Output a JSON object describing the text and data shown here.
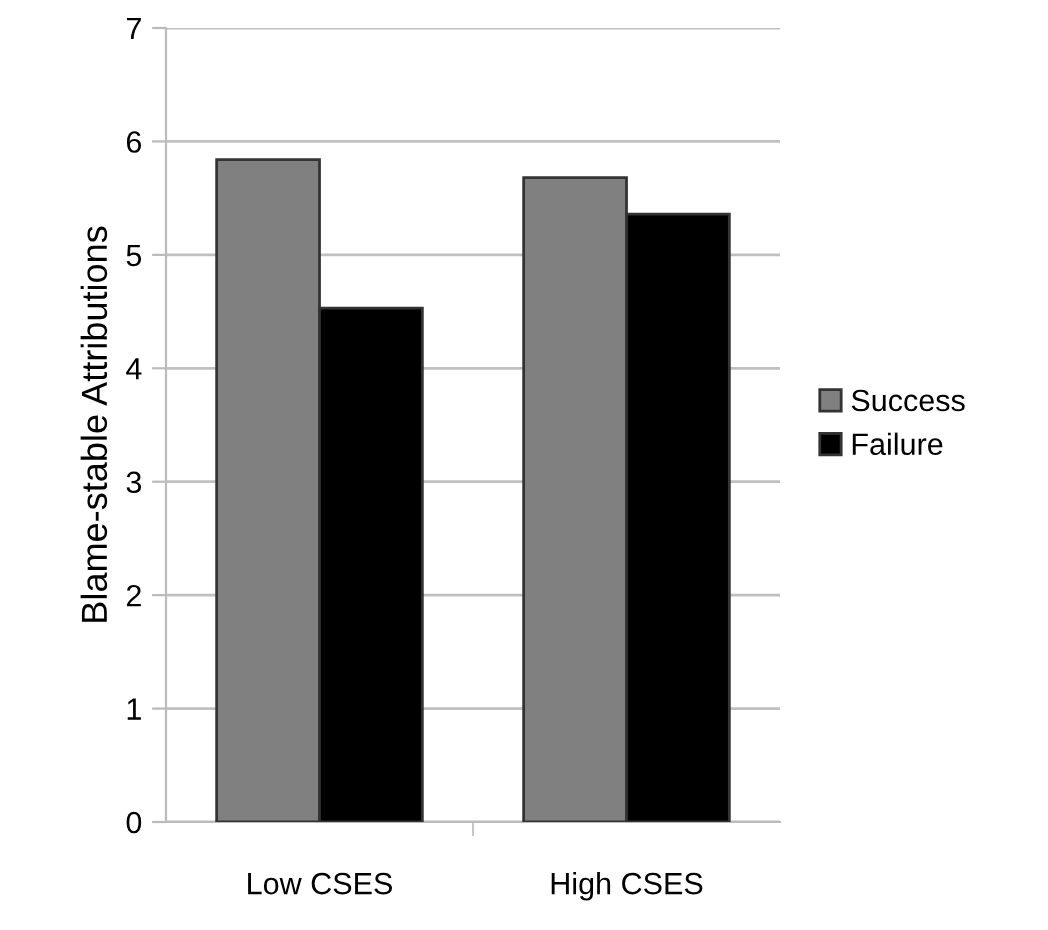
{
  "chart_data": {
    "type": "bar",
    "ylabel": "Blame-stable Attributions",
    "categories": [
      "Low CSES",
      "High CSES"
    ],
    "series": [
      {
        "name": "Success",
        "color": "#808080",
        "values": [
          5.84,
          5.68
        ]
      },
      {
        "name": "Failure",
        "color": "#000000",
        "values": [
          4.53,
          5.36
        ]
      }
    ],
    "ylim": [
      0,
      7
    ],
    "yticks": [
      0,
      1,
      2,
      3,
      4,
      5,
      6,
      7
    ],
    "grid": "y",
    "legend": "right"
  }
}
